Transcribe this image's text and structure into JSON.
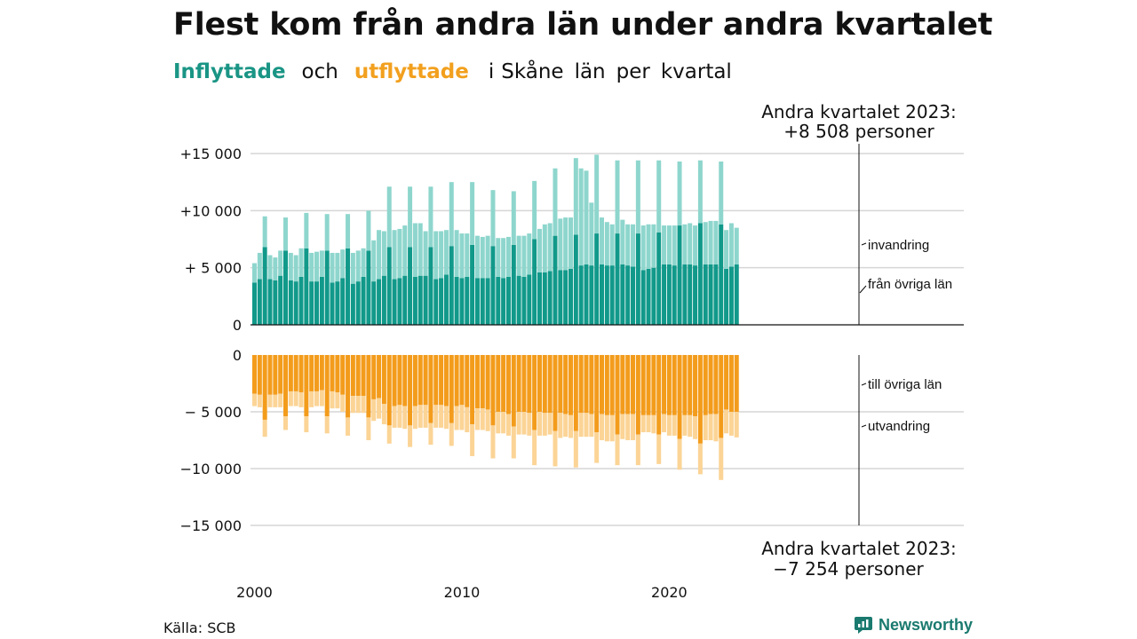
{
  "title": "Flest kom från andra län under andra kvartalet",
  "subtitle": {
    "inflow": "Inflyttade",
    "and": "och",
    "outflow": "utflyttade",
    "rest": [
      "i",
      "Skåne",
      "län",
      "per",
      "kvartal"
    ]
  },
  "source": "Källa: SCB",
  "brand": "Newsworthy",
  "colors": {
    "in_dark": "#11998a",
    "in_light": "#8ed6cd",
    "out_dark": "#f39c1c",
    "out_light": "#fbd496"
  },
  "chart_data": {
    "type": "bar",
    "layout": "stacked, diverging (top panel inflow, bottom panel outflow)",
    "grid": true,
    "period": "quarterly, Q1 2000 – Q2 2023",
    "x_ticks": [
      "2000",
      "2010",
      "2020"
    ],
    "top_panel": {
      "y_ticks": [
        {
          "value": 15000,
          "label": "+15 000"
        },
        {
          "value": 10000,
          "label": "+10 000"
        },
        {
          "value": 5000,
          "label": "+ 5 000"
        },
        {
          "value": 0,
          "label": "0"
        }
      ],
      "ylim": [
        0,
        15000
      ],
      "series_labels": [
        "invandring",
        "från övriga län"
      ],
      "annotation": [
        "Andra kvartalet 2023:",
        "+8 508 personer"
      ]
    },
    "bottom_panel": {
      "y_ticks": [
        {
          "value": 0,
          "label": "0"
        },
        {
          "value": -5000,
          "label": "− 5 000"
        },
        {
          "value": -10000,
          "label": "−10 000"
        },
        {
          "value": -15000,
          "label": "−15 000"
        }
      ],
      "ylim": [
        -15000,
        0
      ],
      "series_labels": [
        "till övriga län",
        "utvandring"
      ],
      "annotation": [
        "Andra kvartalet 2023:",
        "−7 254 personer"
      ]
    },
    "categories": [
      "2000 Q1",
      "2000 Q2",
      "2000 Q3",
      "2000 Q4",
      "2001 Q1",
      "2001 Q2",
      "2001 Q3",
      "2001 Q4",
      "2002 Q1",
      "2002 Q2",
      "2002 Q3",
      "2002 Q4",
      "2003 Q1",
      "2003 Q2",
      "2003 Q3",
      "2003 Q4",
      "2004 Q1",
      "2004 Q2",
      "2004 Q3",
      "2004 Q4",
      "2005 Q1",
      "2005 Q2",
      "2005 Q3",
      "2005 Q4",
      "2006 Q1",
      "2006 Q2",
      "2006 Q3",
      "2006 Q4",
      "2007 Q1",
      "2007 Q2",
      "2007 Q3",
      "2007 Q4",
      "2008 Q1",
      "2008 Q2",
      "2008 Q3",
      "2008 Q4",
      "2009 Q1",
      "2009 Q2",
      "2009 Q3",
      "2009 Q4",
      "2010 Q1",
      "2010 Q2",
      "2010 Q3",
      "2010 Q4",
      "2011 Q1",
      "2011 Q2",
      "2011 Q3",
      "2011 Q4",
      "2012 Q1",
      "2012 Q2",
      "2012 Q3",
      "2012 Q4",
      "2013 Q1",
      "2013 Q2",
      "2013 Q3",
      "2013 Q4",
      "2014 Q1",
      "2014 Q2",
      "2014 Q3",
      "2014 Q4",
      "2015 Q1",
      "2015 Q2",
      "2015 Q3",
      "2015 Q4",
      "2016 Q1",
      "2016 Q2",
      "2016 Q3",
      "2016 Q4",
      "2017 Q1",
      "2017 Q2",
      "2017 Q3",
      "2017 Q4",
      "2018 Q1",
      "2018 Q2",
      "2018 Q3",
      "2018 Q4",
      "2019 Q1",
      "2019 Q2",
      "2019 Q3",
      "2019 Q4",
      "2020 Q1",
      "2020 Q2",
      "2020 Q3",
      "2020 Q4",
      "2021 Q1",
      "2021 Q2",
      "2021 Q3",
      "2021 Q4",
      "2022 Q1",
      "2022 Q2",
      "2022 Q3",
      "2022 Q4",
      "2023 Q1",
      "2023 Q2"
    ],
    "series": [
      {
        "name": "från övriga län",
        "panel": "top",
        "values": [
          3700,
          4000,
          6800,
          4000,
          3900,
          4300,
          6500,
          3900,
          3800,
          4200,
          6700,
          3800,
          3800,
          4200,
          6500,
          3700,
          3800,
          4100,
          6700,
          3600,
          3800,
          4200,
          6500,
          3800,
          4000,
          4300,
          6800,
          4000,
          4100,
          4300,
          6800,
          4200,
          4300,
          4300,
          6800,
          4000,
          4100,
          4400,
          6900,
          4200,
          4100,
          4200,
          7000,
          4100,
          4100,
          4100,
          6900,
          4200,
          4100,
          4200,
          7000,
          4300,
          4200,
          4400,
          7500,
          4600,
          4600,
          4700,
          7800,
          4800,
          4800,
          4900,
          7900,
          5200,
          5300,
          5200,
          8000,
          5300,
          5200,
          5200,
          8000,
          5300,
          5200,
          5100,
          8000,
          4800,
          4900,
          5000,
          8100,
          5300,
          5300,
          5200,
          8700,
          5300,
          5300,
          5200,
          8900,
          5300,
          5300,
          5300,
          8800,
          4900,
          5100,
          5300
        ]
      },
      {
        "name": "invandring",
        "panel": "top",
        "values": [
          1700,
          2300,
          2700,
          2100,
          2000,
          2200,
          2900,
          2400,
          2300,
          2500,
          3100,
          2500,
          2600,
          2300,
          3200,
          2600,
          2500,
          2500,
          3000,
          2700,
          2700,
          2500,
          3500,
          3600,
          4300,
          3900,
          5300,
          4300,
          4300,
          4400,
          5300,
          4700,
          4600,
          3900,
          5300,
          4200,
          4100,
          3900,
          5600,
          4100,
          3900,
          3800,
          5500,
          3700,
          3600,
          3700,
          4900,
          3400,
          3500,
          3500,
          4700,
          3500,
          3600,
          3600,
          5100,
          3800,
          4200,
          4200,
          5900,
          4500,
          4600,
          4500,
          6700,
          8500,
          8200,
          5500,
          6900,
          4100,
          3800,
          3600,
          6400,
          3900,
          3600,
          3700,
          6400,
          3900,
          3900,
          3800,
          6300,
          3400,
          3400,
          3500,
          5600,
          3500,
          3600,
          3500,
          5500,
          3700,
          3800,
          3800,
          5500,
          3400,
          3800,
          3200
        ]
      },
      {
        "name": "till övriga län",
        "panel": "bottom",
        "values": [
          3400,
          3500,
          5700,
          3500,
          3500,
          3400,
          5400,
          3200,
          3200,
          3300,
          5400,
          3200,
          3200,
          3100,
          5400,
          3200,
          3300,
          3500,
          5500,
          3600,
          3600,
          3600,
          5500,
          3900,
          3800,
          4300,
          6200,
          4500,
          4400,
          4500,
          6200,
          4500,
          4400,
          4400,
          6000,
          4400,
          4400,
          4500,
          6000,
          4500,
          4400,
          4600,
          6100,
          4700,
          4700,
          4800,
          6200,
          5000,
          5000,
          5200,
          6300,
          5000,
          5000,
          5100,
          6600,
          5000,
          5100,
          5100,
          6700,
          5100,
          5200,
          5300,
          6700,
          5100,
          5100,
          5200,
          6800,
          5200,
          5300,
          5300,
          7000,
          5200,
          5200,
          5200,
          7000,
          5300,
          5300,
          5300,
          7000,
          5200,
          5300,
          5300,
          7400,
          5300,
          5300,
          5400,
          7800,
          5300,
          5200,
          5200,
          7300,
          4800,
          5000,
          5000
        ]
      },
      {
        "name": "utvandring",
        "panel": "bottom",
        "values": [
          1100,
          1100,
          1500,
          1100,
          1100,
          1200,
          1200,
          1300,
          1300,
          1300,
          1400,
          1400,
          1300,
          1400,
          1500,
          1500,
          1400,
          1500,
          1600,
          1500,
          1500,
          1500,
          2000,
          1900,
          1800,
          1800,
          1600,
          1900,
          2000,
          2000,
          1900,
          2000,
          2000,
          2000,
          1900,
          2000,
          2000,
          2000,
          2000,
          2100,
          2200,
          2200,
          2800,
          1900,
          1900,
          1900,
          2900,
          1900,
          1900,
          1900,
          2800,
          2000,
          2000,
          2000,
          3100,
          2100,
          2000,
          1900,
          3100,
          2200,
          2000,
          2000,
          3200,
          2100,
          2100,
          2000,
          2700,
          2300,
          2300,
          2300,
          2700,
          2200,
          2300,
          2300,
          2700,
          1500,
          1500,
          1600,
          2600,
          1600,
          1800,
          1800,
          2700,
          1800,
          1900,
          2000,
          2700,
          2200,
          2300,
          2400,
          3700,
          2100,
          2100,
          2254
        ]
      }
    ]
  }
}
